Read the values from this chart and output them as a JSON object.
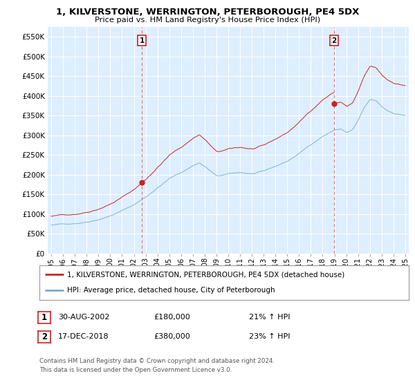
{
  "title": "1, KILVERSTONE, WERRINGTON, PETERBOROUGH, PE4 5DX",
  "subtitle": "Price paid vs. HM Land Registry's House Price Index (HPI)",
  "footer": "Contains HM Land Registry data © Crown copyright and database right 2024.\nThis data is licensed under the Open Government Licence v3.0.",
  "legend_line1": "1, KILVERSTONE, WERRINGTON, PETERBOROUGH, PE4 5DX (detached house)",
  "legend_line2": "HPI: Average price, detached house, City of Peterborough",
  "sale1_label": "1",
  "sale1_date": "30-AUG-2002",
  "sale1_price": "£180,000",
  "sale1_hpi": "21% ↑ HPI",
  "sale1_year": 2002.67,
  "sale1_value": 180000,
  "sale2_label": "2",
  "sale2_date": "17-DEC-2018",
  "sale2_price": "£380,000",
  "sale2_hpi": "23% ↑ HPI",
  "sale2_year": 2018.96,
  "sale2_value": 380000,
  "red_color": "#cc2222",
  "blue_color": "#7aaacc",
  "plot_bg_color": "#ddeeff",
  "ylim_min": 0,
  "ylim_max": 575000,
  "xlim_min": 1994.7,
  "xlim_max": 2025.3,
  "background_color": "#ffffff",
  "grid_color": "#ffffff",
  "yticks": [
    0,
    50000,
    100000,
    150000,
    200000,
    250000,
    300000,
    350000,
    400000,
    450000,
    500000,
    550000
  ],
  "ytick_labels": [
    "£0",
    "£50K",
    "£100K",
    "£150K",
    "£200K",
    "£250K",
    "£300K",
    "£350K",
    "£400K",
    "£450K",
    "£500K",
    "£550K"
  ],
  "xticks": [
    1995,
    1996,
    1997,
    1998,
    1999,
    2000,
    2001,
    2002,
    2003,
    2004,
    2005,
    2006,
    2007,
    2008,
    2009,
    2010,
    2011,
    2012,
    2013,
    2014,
    2015,
    2016,
    2017,
    2018,
    2019,
    2020,
    2021,
    2022,
    2023,
    2024,
    2025
  ]
}
